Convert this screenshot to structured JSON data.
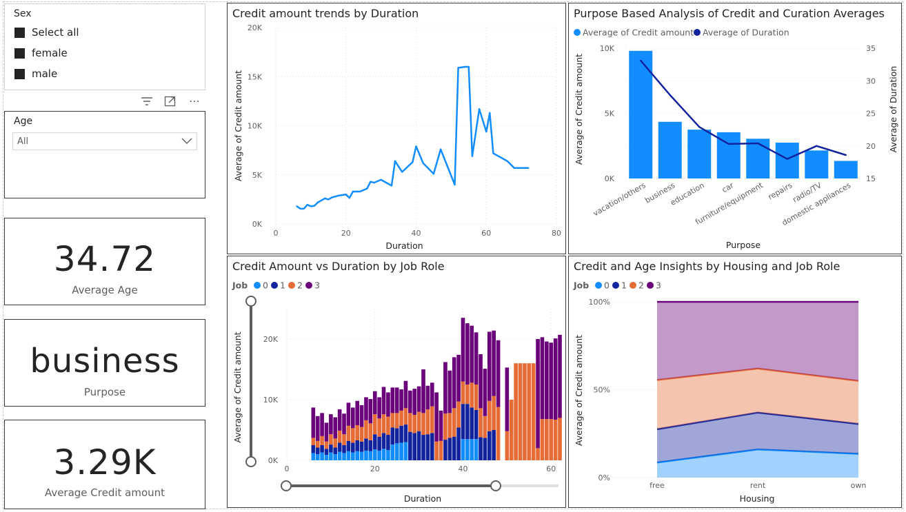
{
  "slicers": {
    "sex": {
      "title": "Sex",
      "items": [
        "Select all",
        "female",
        "male"
      ]
    },
    "age": {
      "title": "Age",
      "value": "All"
    }
  },
  "cards": [
    {
      "value": "34.72",
      "label": "Average Age"
    },
    {
      "value": "business",
      "label": "Purpose"
    },
    {
      "value": "3.29K",
      "label": "Average Credit amount"
    }
  ],
  "chart_data": [
    {
      "id": "c1",
      "type": "line",
      "title": "Credit amount trends by Duration",
      "xlabel": "Duration",
      "ylabel": "Average of Credit amount",
      "xlim": [
        0,
        80
      ],
      "ylim": [
        0,
        20000
      ],
      "xticks": [
        "0",
        "20",
        "40",
        "60",
        "80"
      ],
      "yticks": [
        "0K",
        "5K",
        "10K",
        "15K",
        "20K"
      ],
      "grid": true,
      "color": "#118DFF",
      "x": [
        6,
        7,
        8,
        9,
        10,
        11,
        12,
        13,
        14,
        15,
        16,
        18,
        20,
        21,
        22,
        24,
        26,
        27,
        28,
        30,
        33,
        34,
        36,
        39,
        40,
        42,
        45,
        47,
        48,
        51,
        52,
        54,
        55,
        56,
        58,
        60,
        61,
        62,
        63,
        64,
        66,
        68,
        72
      ],
      "y": [
        1800,
        1550,
        1550,
        1950,
        1800,
        1850,
        2200,
        2400,
        2600,
        2500,
        2700,
        2900,
        3000,
        2650,
        3300,
        3300,
        3600,
        4300,
        4200,
        4500,
        3900,
        6400,
        5300,
        6300,
        7900,
        6200,
        5100,
        7600,
        6700,
        4000,
        15900,
        16000,
        16000,
        6900,
        11700,
        9400,
        11300,
        7200,
        7000,
        6800,
        6400,
        5700,
        5700
      ]
    },
    {
      "id": "c2",
      "type": "bar",
      "title": "Purpose Based Analysis of Credit and Curation Averages",
      "xlabel": "Purpose",
      "ylabel": "Average of Credit amount",
      "y2label": "Average of Duration",
      "legend": [
        "Average of Credit amount",
        "Average of Duration"
      ],
      "legend_position": "top-left",
      "categories": [
        "vacation/others",
        "business",
        "education",
        "car",
        "furniture/equipment",
        "repairs",
        "radio/TV",
        "domestic appliances"
      ],
      "ylim": [
        0,
        10000
      ],
      "y2lim": [
        15,
        35
      ],
      "yticks": [
        "0K",
        "5K",
        "10K"
      ],
      "y2ticks": [
        "15",
        "20",
        "25",
        "30",
        "35"
      ],
      "series": [
        {
          "name": "Average of Credit amount",
          "type": "bar",
          "color": "#118DFF",
          "values": [
            9800,
            4350,
            3750,
            3550,
            3050,
            2750,
            2150,
            1350
          ]
        },
        {
          "name": "Average of Duration",
          "type": "line",
          "color": "#12239E",
          "values": [
            33.1,
            27.8,
            22.9,
            20.3,
            20.4,
            18,
            20,
            18.6
          ]
        }
      ]
    },
    {
      "id": "c3",
      "type": "bar",
      "stacked": true,
      "title": "Credit Amount vs Duration by Job Role",
      "xlabel": "Duration",
      "ylabel": "Average of Credit amount",
      "legend_title": "Job",
      "legend": [
        "0",
        "1",
        "2",
        "3"
      ],
      "legend_position": "top-left",
      "colors": [
        "#118DFF",
        "#12239E",
        "#E66C37",
        "#6B007B"
      ],
      "xlim": [
        0,
        62
      ],
      "ylim": [
        0,
        25000
      ],
      "xticks": [
        "0",
        "20",
        "40",
        "60"
      ],
      "yticks": [
        "0K",
        "10K",
        "20K"
      ],
      "x": [
        6,
        7,
        8,
        9,
        10,
        11,
        12,
        13,
        14,
        15,
        16,
        17,
        18,
        19,
        20,
        21,
        22,
        23,
        24,
        25,
        26,
        27,
        28,
        29,
        30,
        31,
        32,
        33,
        34,
        35,
        36,
        37,
        38,
        39,
        40,
        41,
        42,
        43,
        44,
        45,
        46,
        47,
        48,
        49,
        50,
        51,
        52,
        53,
        54,
        55,
        56,
        57,
        58,
        59,
        60,
        61,
        62
      ],
      "series": [
        {
          "name": "0",
          "values": [
            1200,
            1000,
            1300,
            900,
            1300,
            1000,
            1400,
            1200,
            1500,
            1300,
            1500,
            1400,
            1600,
            1500,
            1800,
            1600,
            1900,
            1700,
            2600,
            2800,
            2900,
            3000,
            0,
            0,
            0,
            0,
            0,
            0,
            0,
            0,
            0,
            0,
            0,
            0,
            3500,
            3500,
            3500,
            3500,
            0,
            0,
            0,
            0,
            0,
            0,
            0,
            0,
            0,
            0,
            0,
            0,
            0,
            0,
            0,
            0,
            0,
            0,
            0
          ]
        },
        {
          "name": "1",
          "values": [
            1300,
            1100,
            1200,
            1000,
            1300,
            1100,
            1500,
            1300,
            1700,
            1600,
            1800,
            1700,
            2000,
            1800,
            2500,
            2300,
            2600,
            2500,
            2800,
            2500,
            2800,
            2900,
            4700,
            4500,
            4800,
            4200,
            4300,
            4500,
            0,
            0,
            3400,
            3700,
            3900,
            5400,
            5800,
            5800,
            5200,
            4800,
            3800,
            3700,
            4800,
            5000,
            0,
            0,
            0,
            0,
            0,
            0,
            0,
            0,
            0,
            0,
            0,
            0,
            0,
            0,
            0
          ]
        },
        {
          "name": "2",
          "values": [
            1200,
            1100,
            1500,
            1200,
            1700,
            1500,
            2000,
            1800,
            2500,
            2400,
            2500,
            2400,
            3000,
            2800,
            3300,
            3000,
            3100,
            3000,
            2400,
            2500,
            2500,
            2700,
            3100,
            3000,
            3200,
            3600,
            4100,
            4400,
            3100,
            3200,
            4300,
            4100,
            4700,
            4300,
            3700,
            3200,
            4100,
            4200,
            4800,
            3600,
            5000,
            5600,
            8800,
            0,
            4800,
            10000,
            16000,
            16000,
            16000,
            16000,
            16000,
            2000,
            6800,
            6800,
            6800,
            6700,
            7000
          ]
        },
        {
          "name": "3",
          "values": [
            5000,
            4100,
            3800,
            3100,
            3300,
            3500,
            3500,
            3400,
            3800,
            3400,
            4000,
            3600,
            3800,
            4000,
            3800,
            3500,
            4500,
            4000,
            4200,
            4200,
            3500,
            4500,
            3700,
            4300,
            4200,
            7200,
            3900,
            3900,
            8100,
            5000,
            8500,
            7000,
            8400,
            7700,
            10500,
            10100,
            9400,
            8600,
            8900,
            7800,
            11400,
            10800,
            11000,
            0,
            10500,
            0,
            0,
            0,
            0,
            0,
            0,
            18000,
            13500,
            12800,
            12600,
            13400,
            13700
          ]
        }
      ]
    },
    {
      "id": "c4",
      "type": "area",
      "stacked": "percent",
      "title": "Credit and Age Insights by Housing and Job Role",
      "xlabel": "Housing",
      "ylabel": "Average of Credit amount",
      "legend_title": "Job",
      "legend": [
        "0",
        "1",
        "2",
        "3"
      ],
      "legend_position": "top-left",
      "colors": [
        "#118DFF",
        "#12239E",
        "#E66C37",
        "#6B007B"
      ],
      "categories": [
        "free",
        "rent",
        "own"
      ],
      "ylim": [
        0,
        100
      ],
      "yticks": [
        "0%",
        "50%",
        "100%"
      ],
      "series": [
        {
          "name": "0",
          "values": [
            8.5,
            16,
            13.5
          ]
        },
        {
          "name": "1",
          "values": [
            19,
            21,
            17
          ]
        },
        {
          "name": "2",
          "values": [
            28,
            25,
            24.5
          ]
        },
        {
          "name": "3",
          "values": [
            44.5,
            38,
            45
          ]
        }
      ]
    }
  ]
}
